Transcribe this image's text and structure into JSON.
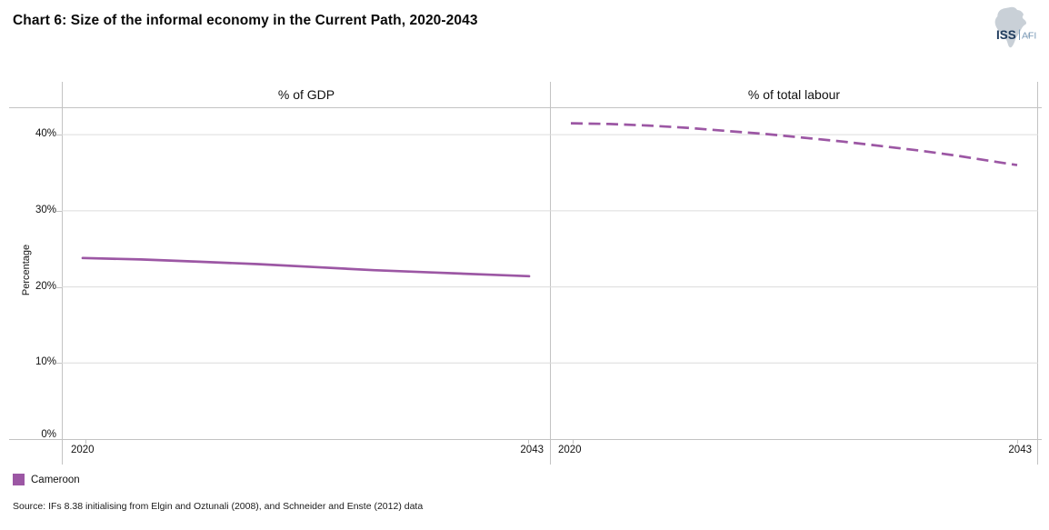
{
  "header": {
    "title": "Chart 6: Size of the informal economy in the Current Path, 2020-2043",
    "logo": {
      "primary": "ISS",
      "secondary": "AFI"
    }
  },
  "colors": {
    "series": "#9C57A4",
    "gridline": "#DCDCDC",
    "border": "#C3C3C3",
    "logo_primary": "#1E3A5C",
    "logo_secondary": "#7E9DB9",
    "logo_continent": "#C9D0D7"
  },
  "y_axis": {
    "label": "Percentage",
    "ticks": [
      {
        "label": "40%",
        "value": 40
      },
      {
        "label": "30%",
        "value": 30
      },
      {
        "label": "20%",
        "value": 20
      },
      {
        "label": "10%",
        "value": 10
      },
      {
        "label": "0%",
        "value": 0
      }
    ]
  },
  "legend": {
    "items": [
      {
        "label": "Cameroon",
        "color": "#9C57A4"
      }
    ]
  },
  "source": "Source: IFs 8.38 initialising  from Elgin and Oztunali (2008), and Schneider and Enste (2012) data",
  "chart_data": [
    {
      "type": "line",
      "title": "% of GDP",
      "xlabel": "",
      "ylabel": "Percentage",
      "ylim": [
        0,
        43.6
      ],
      "x_range": [
        2020,
        2043
      ],
      "xticks": [
        "2020",
        "2043"
      ],
      "yticks": [
        "0%",
        "10%",
        "20%",
        "30%",
        "40%"
      ],
      "grid": true,
      "legend_position": "bottom-left",
      "series": [
        {
          "name": "Cameroon",
          "line_style": "solid",
          "color": "#9C57A4",
          "x": [
            2020,
            2023,
            2026,
            2029,
            2032,
            2035,
            2038,
            2041,
            2043
          ],
          "values": [
            23.8,
            23.6,
            23.3,
            23.0,
            22.6,
            22.2,
            21.9,
            21.6,
            21.4
          ]
        }
      ]
    },
    {
      "type": "line",
      "title": "% of total labour",
      "xlabel": "",
      "ylabel": "Percentage",
      "ylim": [
        0,
        43.6
      ],
      "x_range": [
        2020,
        2043
      ],
      "xticks": [
        "2020",
        "2043"
      ],
      "yticks": [
        "0%",
        "10%",
        "20%",
        "30%",
        "40%"
      ],
      "grid": true,
      "series": [
        {
          "name": "Cameroon",
          "line_style": "dashed",
          "color": "#9C57A4",
          "x": [
            2020,
            2022,
            2024,
            2026,
            2028,
            2030,
            2032,
            2034,
            2036,
            2038,
            2040,
            2042,
            2043
          ],
          "values": [
            41.5,
            41.4,
            41.2,
            40.9,
            40.5,
            40.1,
            39.6,
            39.1,
            38.5,
            37.9,
            37.2,
            36.4,
            36.0
          ]
        }
      ]
    }
  ]
}
